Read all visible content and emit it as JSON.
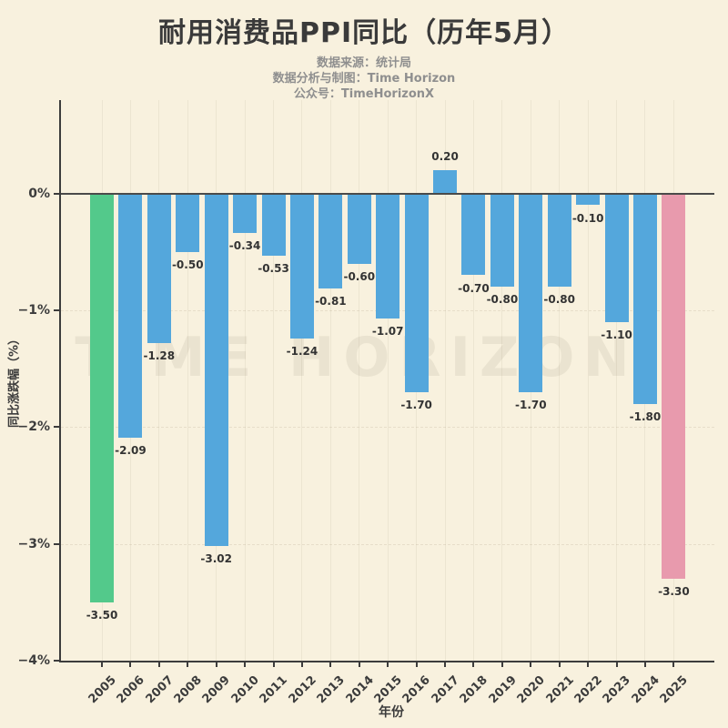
{
  "header": {
    "title": "耐用消费品PPI同比（历年5月）",
    "subtitle_lines": [
      "数据来源：统计局",
      "数据分析与制图：Time Horizon",
      "公众号：TimeHorizonX"
    ]
  },
  "watermark": "TIME HORIZON",
  "colors": {
    "background": "#F8F1DE",
    "bar_default": "#54A7DC",
    "bar_first": "#53C98B",
    "bar_last": "#E89AAD",
    "axis": "#3C3C3C",
    "title_text": "#3A3A3A",
    "subtitle_text": "#8F8F8F",
    "value_label": "#333333"
  },
  "chart_data": {
    "type": "bar",
    "title": "耐用消费品PPI同比（历年5月）",
    "xlabel": "年份",
    "ylabel": "同比涨跌幅（%）",
    "categories": [
      "2005",
      "2006",
      "2007",
      "2008",
      "2009",
      "2010",
      "2011",
      "2012",
      "2013",
      "2014",
      "2015",
      "2016",
      "2017",
      "2018",
      "2019",
      "2020",
      "2021",
      "2022",
      "2023",
      "2024",
      "2025"
    ],
    "values": [
      -3.5,
      -2.09,
      -1.28,
      -0.5,
      -3.02,
      -0.34,
      -0.53,
      -1.24,
      -0.81,
      -0.6,
      -1.07,
      -1.7,
      0.2,
      -0.7,
      -0.8,
      -1.7,
      -0.8,
      -0.1,
      -1.1,
      -1.8,
      -3.3
    ],
    "value_labels": [
      "-3.50",
      "-2.09",
      "-1.28",
      "-0.50",
      "-3.02",
      "-0.34",
      "-0.53",
      "-1.24",
      "-0.81",
      "-0.60",
      "-1.07",
      "-1.70",
      "0.20",
      "-0.70",
      "-0.80",
      "-1.70",
      "-0.80",
      "-0.10",
      "-1.10",
      "-1.80",
      "-3.30"
    ],
    "bar_colors": [
      "#53C98B",
      "#54A7DC",
      "#54A7DC",
      "#54A7DC",
      "#54A7DC",
      "#54A7DC",
      "#54A7DC",
      "#54A7DC",
      "#54A7DC",
      "#54A7DC",
      "#54A7DC",
      "#54A7DC",
      "#54A7DC",
      "#54A7DC",
      "#54A7DC",
      "#54A7DC",
      "#54A7DC",
      "#54A7DC",
      "#54A7DC",
      "#54A7DC",
      "#E89AAD"
    ],
    "ylim": [
      -4,
      0.8
    ],
    "yticks": [
      {
        "value": 0,
        "label": "0%"
      },
      {
        "value": -1,
        "label": "−1%"
      },
      {
        "value": -2,
        "label": "−2%"
      },
      {
        "value": -3,
        "label": "−3%"
      },
      {
        "value": -4,
        "label": "−4%"
      }
    ],
    "grid": true,
    "legend": "none"
  }
}
